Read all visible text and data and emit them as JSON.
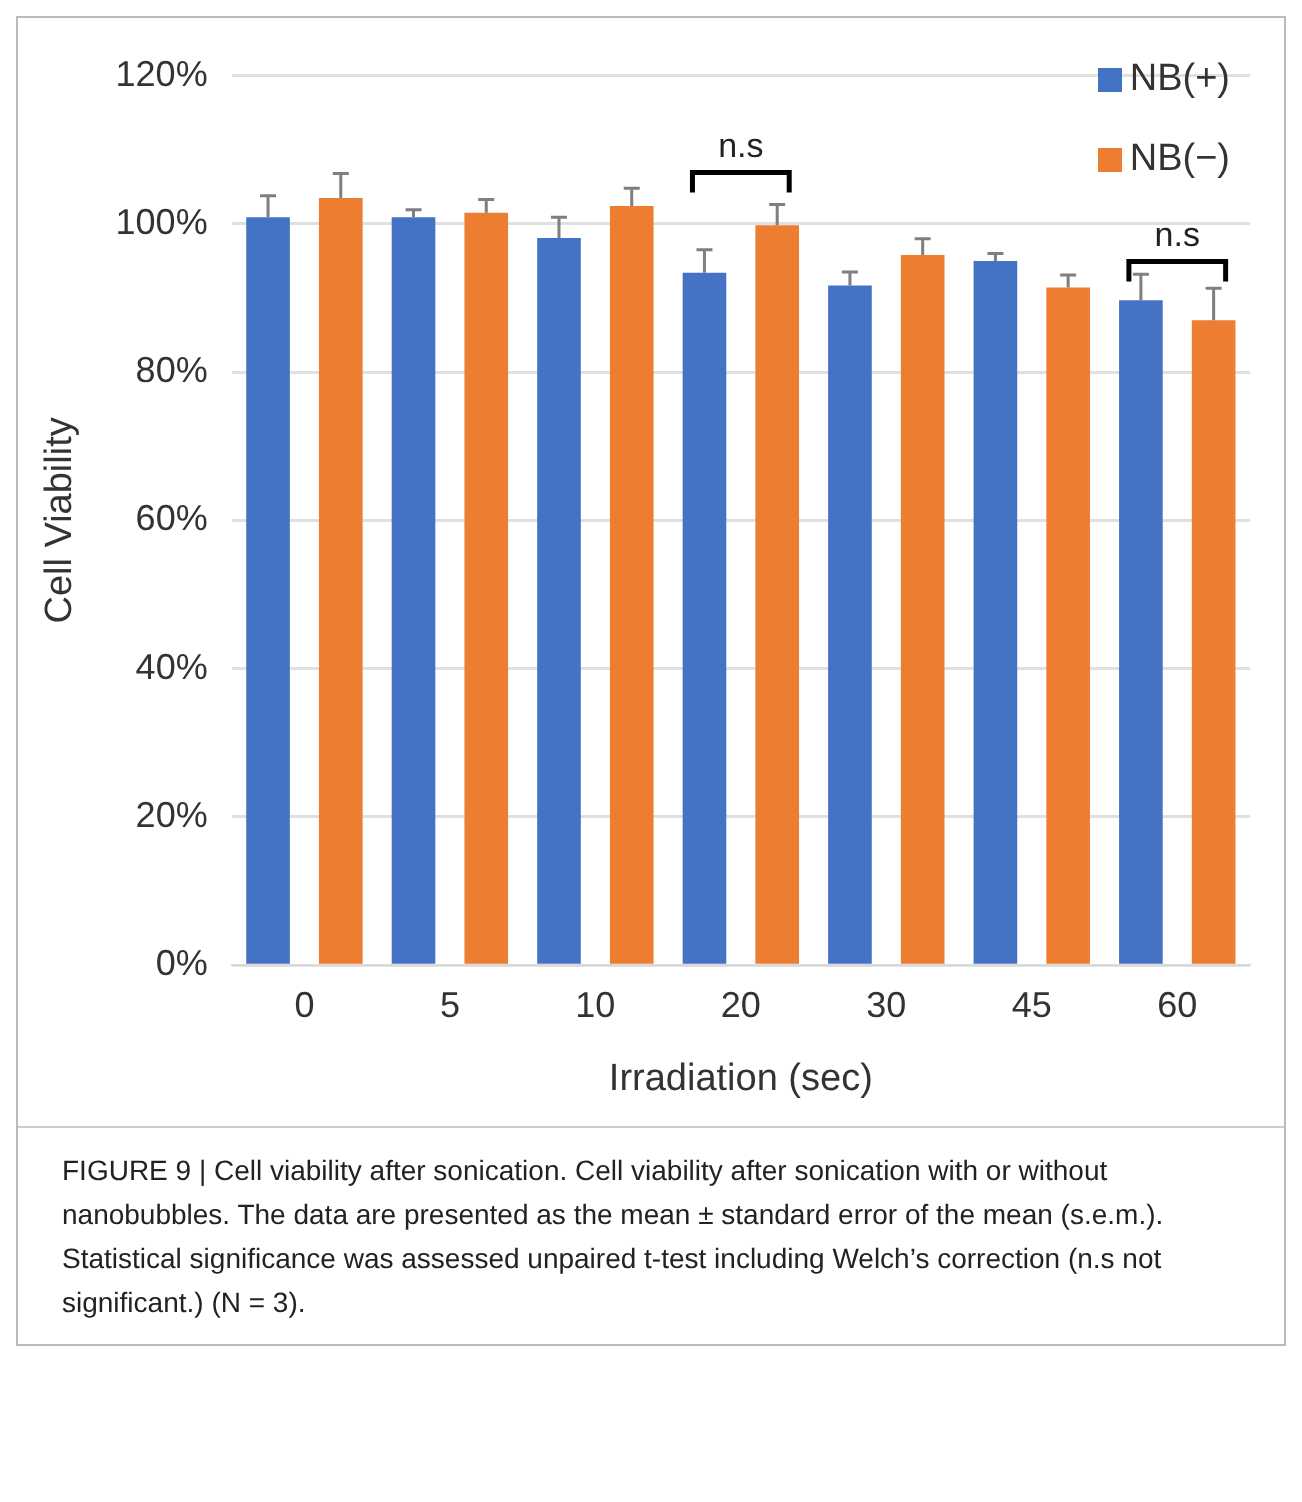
{
  "chart_data": {
    "type": "bar",
    "xlabel": "Irradiation (sec)",
    "ylabel": "Cell Viability",
    "categories": [
      "0",
      "5",
      "10",
      "20",
      "30",
      "45",
      "60"
    ],
    "series": [
      {
        "name": "NB(+)",
        "color": "#4472c4",
        "values": [
          100.9,
          100.9,
          98.1,
          93.4,
          91.7,
          95.0,
          89.7
        ],
        "errors": [
          [
            100.9,
            103.8
          ],
          [
            100.9,
            101.9
          ],
          [
            98.1,
            100.9
          ],
          [
            93.4,
            96.5
          ],
          [
            91.7,
            93.5
          ],
          [
            95.0,
            96.0
          ],
          [
            89.7,
            93.2
          ]
        ]
      },
      {
        "name": "NB(−)",
        "color": "#ed7d31",
        "values": [
          103.5,
          101.5,
          102.4,
          99.8,
          95.8,
          91.4,
          87.0
        ],
        "errors": [
          [
            103.5,
            106.8
          ],
          [
            101.5,
            103.3
          ],
          [
            102.4,
            104.8
          ],
          [
            99.8,
            102.6
          ],
          [
            95.8,
            98.0
          ],
          [
            91.4,
            93.1
          ],
          [
            87.0,
            91.3
          ]
        ]
      }
    ],
    "ylim": [
      0,
      120
    ],
    "yticks": [
      {
        "value": 0,
        "label": "0%"
      },
      {
        "value": 20,
        "label": "20%"
      },
      {
        "value": 40,
        "label": "40%"
      },
      {
        "value": 60,
        "label": "60%"
      },
      {
        "value": 80,
        "label": "80%"
      },
      {
        "value": 100,
        "label": "100%"
      },
      {
        "value": 120,
        "label": "120%"
      }
    ],
    "grid": "y",
    "legend": "top right",
    "annotations": [
      "n.s",
      "n.s",
      "FIGURE 9 | Cell viability after sonication. Cell viability after sonication with or without nanobubbles. The data are presented as the mean ± standard error of the mean (s.e.m.). Statistical significance was assessed unpaired t-test including Welch’s correction (n.s not significant.) (N = 3)."
    ]
  }
}
